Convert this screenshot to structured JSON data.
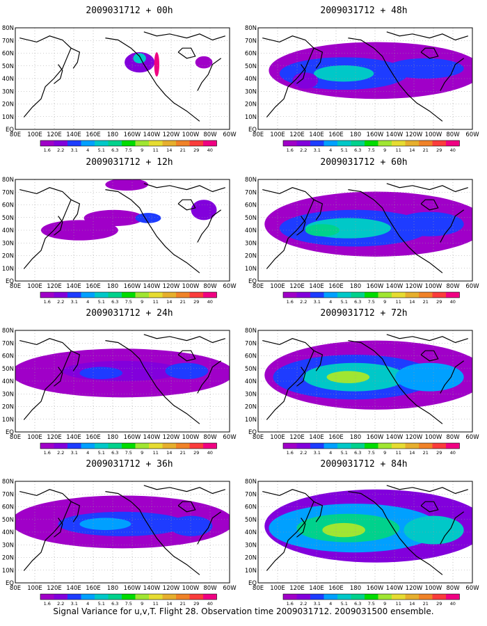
{
  "caption": "Signal Variance for u,v,T. Flight 28. Observation time 2009031712. 2009031500 ensemble.",
  "lon_labels": [
    "80E",
    "100E",
    "120E",
    "140E",
    "160E",
    "180",
    "160W",
    "140W",
    "120W",
    "100W",
    "80W",
    "60W"
  ],
  "lat_labels": [
    "80N",
    "70N",
    "60N",
    "50N",
    "40N",
    "30N",
    "20N",
    "10N",
    "EQ"
  ],
  "colorbar": {
    "labels": [
      "1.6",
      "2.2",
      "3.1",
      "4",
      "5.1",
      "6.3",
      "7.5",
      "9",
      "11",
      "14",
      "21",
      "29",
      "40"
    ],
    "colors": [
      "#a000c8",
      "#8200dc",
      "#1e3cff",
      "#00a0ff",
      "#00c8c8",
      "#00d28c",
      "#00dc00",
      "#a0e632",
      "#e6dc32",
      "#e6af2d",
      "#f08228",
      "#fa3c3c",
      "#f00082"
    ]
  },
  "panels": [
    {
      "title": "2009031712 + 00h",
      "lead": "00h"
    },
    {
      "title": "2009031712 + 48h",
      "lead": "48h"
    },
    {
      "title": "2009031712 + 12h",
      "lead": "12h"
    },
    {
      "title": "2009031712 + 60h",
      "lead": "60h"
    },
    {
      "title": "2009031712 + 24h",
      "lead": "24h"
    },
    {
      "title": "2009031712 + 72h",
      "lead": "72h"
    },
    {
      "title": "2009031712 + 36h",
      "lead": "36h"
    },
    {
      "title": "2009031712 + 84h",
      "lead": "84h"
    }
  ]
}
